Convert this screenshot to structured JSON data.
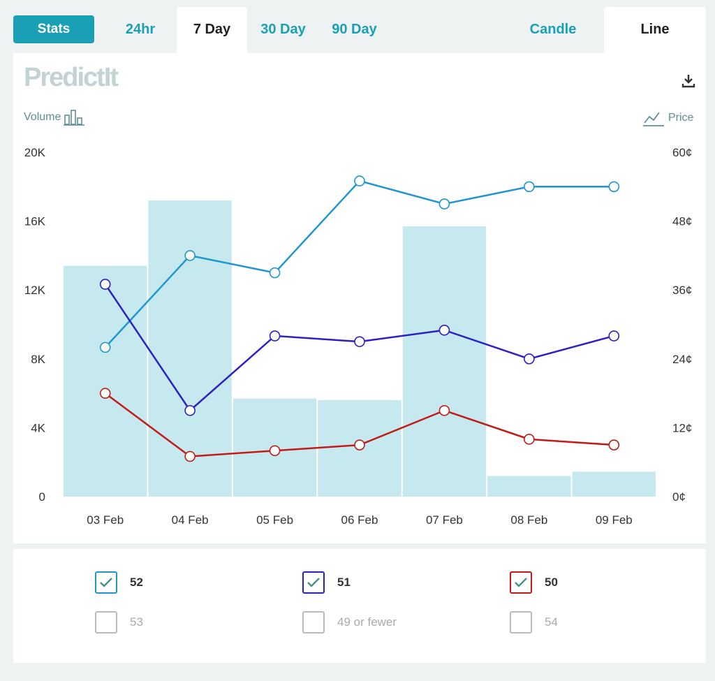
{
  "tabs": {
    "stats": "Stats",
    "items": [
      "24hr",
      "7 Day",
      "30 Day",
      "90 Day"
    ],
    "active": "7 Day",
    "view": [
      "Candle",
      "Line"
    ],
    "active_view": "Line"
  },
  "brand": "PredictIt",
  "axes": {
    "volume_label": "Volume",
    "price_label": "Price",
    "left_ticks": [
      "20K",
      "16K",
      "12K",
      "8K",
      "4K",
      "0"
    ],
    "right_ticks": [
      "60¢",
      "48¢",
      "36¢",
      "24¢",
      "12¢",
      "0¢"
    ]
  },
  "colors": {
    "accent": "#1aa0b4",
    "bar": "#c6e9ef"
  },
  "chart_data": {
    "type": "bar+line",
    "categories": [
      "03 Feb",
      "04 Feb",
      "05 Feb",
      "06 Feb",
      "07 Feb",
      "08 Feb",
      "09 Feb"
    ],
    "volume": {
      "values": [
        13400,
        17200,
        5700,
        5600,
        15700,
        1200,
        1450
      ],
      "ylim": [
        0,
        20000
      ]
    },
    "price_ylim": [
      0,
      60
    ],
    "series": [
      {
        "name": "52",
        "color": "#1f97cc",
        "values": [
          26,
          42,
          39,
          55,
          51,
          54,
          54
        ]
      },
      {
        "name": "51",
        "color": "#2b1fc6",
        "values": [
          37,
          15,
          28,
          27,
          29,
          24,
          28
        ]
      },
      {
        "name": "50",
        "color": "#c21a17",
        "values": [
          18,
          7,
          8,
          9,
          15,
          10,
          9
        ]
      }
    ]
  },
  "legend": [
    {
      "label": "52",
      "checked": true,
      "color": "#1f97cc"
    },
    {
      "label": "51",
      "checked": true,
      "color": "#2b1fc6"
    },
    {
      "label": "50",
      "checked": true,
      "color": "#c21a17"
    },
    {
      "label": "53",
      "checked": false,
      "color": "#bbbbbb"
    },
    {
      "label": "49 or fewer",
      "checked": false,
      "color": "#bbbbbb"
    },
    {
      "label": "54",
      "checked": false,
      "color": "#bbbbbb"
    }
  ]
}
